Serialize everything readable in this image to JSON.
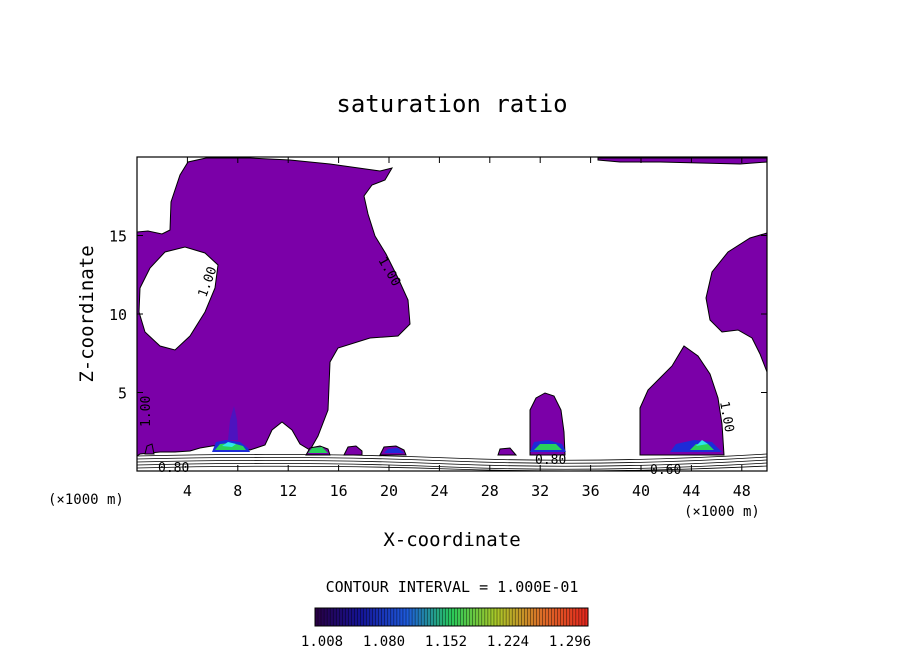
{
  "chart_data": {
    "type": "contour",
    "title": "saturation ratio",
    "xlabel": "X-coordinate",
    "ylabel": "Z-coordinate",
    "x_unit_left": "(×1000 m)",
    "x_unit_right": "(×1000 m)",
    "xlim": [
      0,
      50
    ],
    "ylim": [
      0,
      20
    ],
    "x_ticks": [
      "4",
      "8",
      "12",
      "16",
      "20",
      "24",
      "28",
      "32",
      "36",
      "40",
      "44",
      "48"
    ],
    "y_ticks": [
      "5",
      "10",
      "15"
    ],
    "contour_labels": [
      "1.00",
      "1.00",
      "1.00",
      "1.00",
      "0.80",
      "0.80",
      "0.60"
    ],
    "contour_interval_text": "CONTOUR INTERVAL = 1.000E-01",
    "colorbar_labels": [
      "1.008",
      "1.080",
      "1.152",
      "1.224",
      "1.296"
    ],
    "fill_color": "#7b00a8",
    "colors": {
      "fill": "#7b00a8",
      "line": "#000000",
      "background": "#ffffff"
    }
  }
}
